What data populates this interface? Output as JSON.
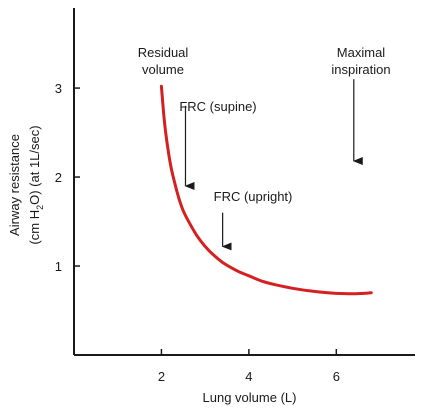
{
  "chart_data": {
    "type": "line",
    "xlabel": "Lung volume (L)",
    "ylabel_line1": "Airway resistance",
    "ylabel_line2_prefix": "(cm H",
    "ylabel_line2_sub": "2",
    "ylabel_line2_suffix": "O) (at 1L/sec)",
    "xlim": [
      0,
      7.8
    ],
    "ylim": [
      0,
      3.9
    ],
    "x_ticks": [
      {
        "value": 2,
        "label": "2"
      },
      {
        "value": 4,
        "label": "4"
      },
      {
        "value": 6,
        "label": "6"
      }
    ],
    "y_ticks": [
      {
        "value": 1,
        "label": "1"
      },
      {
        "value": 2,
        "label": "2"
      },
      {
        "value": 3,
        "label": "3"
      }
    ],
    "grid": false,
    "legend": "none",
    "series": [
      {
        "color": "#d42020",
        "x": [
          2.0,
          2.05,
          2.1,
          2.2,
          2.3,
          2.4,
          2.5,
          2.6,
          2.8,
          3.0,
          3.2,
          3.4,
          3.6,
          3.8,
          4.0,
          4.3,
          4.6,
          5.0,
          5.4,
          5.8,
          6.2,
          6.5,
          6.8
        ],
        "y": [
          3.02,
          2.72,
          2.49,
          2.16,
          1.94,
          1.76,
          1.62,
          1.52,
          1.35,
          1.22,
          1.12,
          1.04,
          0.98,
          0.93,
          0.89,
          0.83,
          0.79,
          0.75,
          0.72,
          0.7,
          0.69,
          0.69,
          0.7
        ]
      }
    ],
    "annotations": [
      {
        "id": "residual",
        "lines": [
          "Residual",
          "volume"
        ],
        "arrow": false
      },
      {
        "id": "maximal",
        "lines": [
          "Maximal",
          "inspiration"
        ],
        "arrow": true,
        "arrow_x": 6.4,
        "arrow_y_from": 3.1,
        "arrow_y_to": 2.18
      },
      {
        "id": "frc-supine",
        "lines": [
          "FRC (supine)"
        ],
        "arrow": true,
        "arrow_x": 2.55,
        "arrow_y_from": 2.8,
        "arrow_y_to": 1.9
      },
      {
        "id": "frc-upright",
        "lines": [
          "FRC (upright)"
        ],
        "arrow": true,
        "arrow_x": 3.4,
        "arrow_y_from": 1.6,
        "arrow_y_to": 1.22
      }
    ]
  }
}
